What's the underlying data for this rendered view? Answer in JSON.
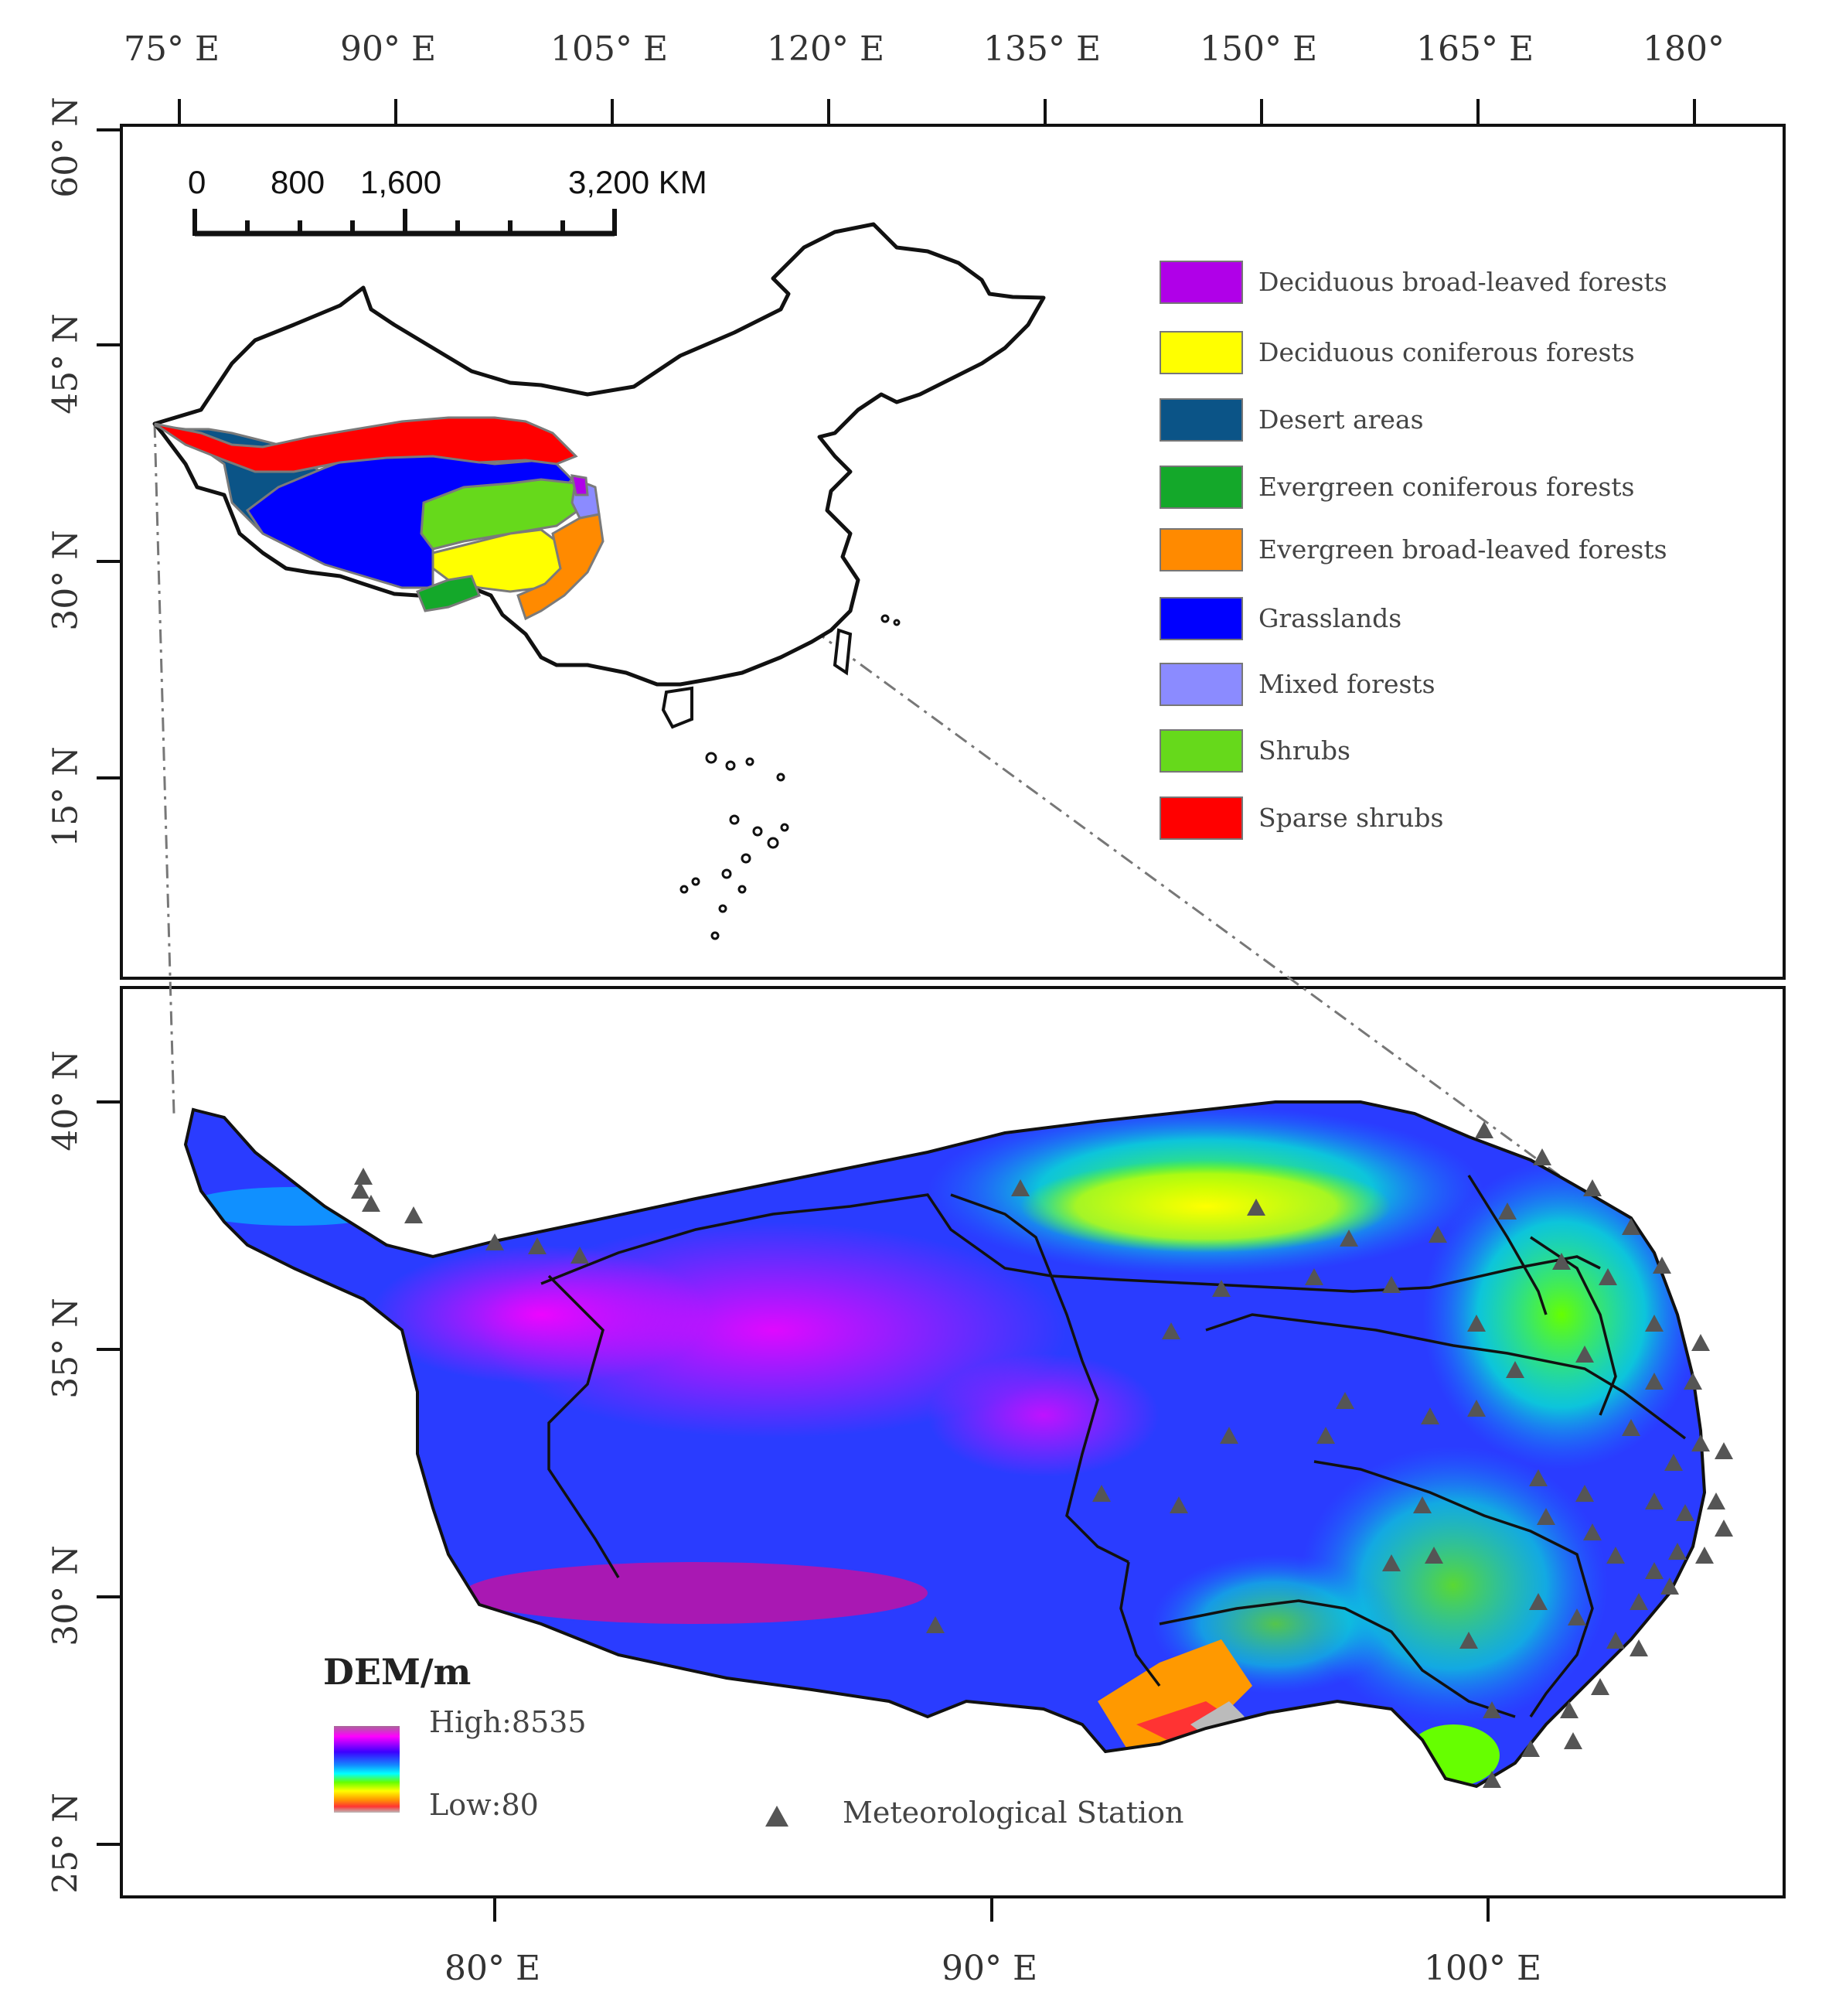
{
  "top_axis": {
    "lon_labels": [
      "75° E",
      "90° E",
      "105° E",
      "120° E",
      "135° E",
      "150° E",
      "165° E",
      "180°"
    ],
    "lat_labels": [
      "60° N",
      "45° N",
      "30° N",
      "15° N"
    ]
  },
  "bottom_axis": {
    "lon_labels": [
      "80° E",
      "90° E",
      "100° E"
    ],
    "lat_labels": [
      "40° N",
      "35° N",
      "30° N",
      "25° N"
    ]
  },
  "scale_bar": {
    "labels": [
      "0",
      "800",
      "1,600",
      "3,200 KM"
    ]
  },
  "vegetation_legend": {
    "items": [
      {
        "label": "Deciduous broad-leaved forests",
        "color": "#b000e8"
      },
      {
        "label": "Deciduous coniferous forests",
        "color": "#ffff00"
      },
      {
        "label": "Desert areas",
        "color": "#0b5487"
      },
      {
        "label": "Evergreen coniferous forests",
        "color": "#14a82a"
      },
      {
        "label": "Evergreen broad-leaved forests",
        "color": "#ff8a00"
      },
      {
        "label": "Grasslands",
        "color": "#0000ff"
      },
      {
        "label": "Mixed forests",
        "color": "#8b8bff"
      },
      {
        "label": "Shrubs",
        "color": "#66d91b"
      },
      {
        "label": "Sparse shrubs",
        "color": "#ff0000"
      }
    ]
  },
  "dem_legend": {
    "title": "DEM/m",
    "high_label": "High:8535",
    "low_label": "Low:80",
    "colors": [
      "#aa6699",
      "#ff00ff",
      "#3c00ff",
      "#1488ff",
      "#00ffff",
      "#66ff00",
      "#ffff00",
      "#ff9900",
      "#ff3333",
      "#bbbbbb"
    ]
  },
  "station_legend": {
    "label": "Meteorological Station",
    "color": "#555555"
  }
}
